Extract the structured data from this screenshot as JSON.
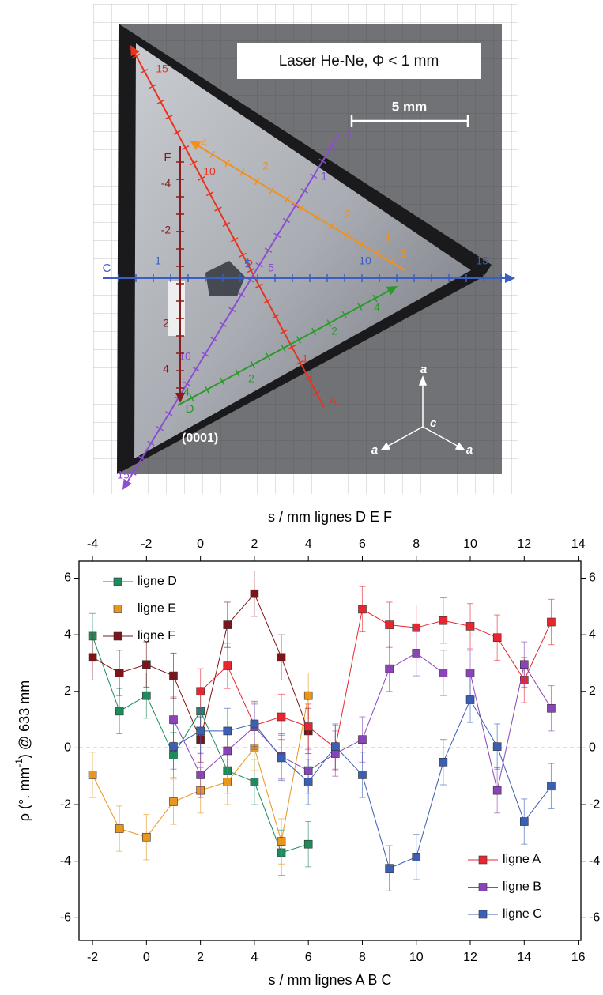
{
  "photo": {
    "caption": "Laser He-Ne, Φ < 1 mm",
    "scale_bar": "5 mm",
    "face": "(0001)",
    "axes": [
      "a",
      "c",
      "a",
      "a"
    ],
    "lines": [
      {
        "name": "A",
        "labels": [
          "15",
          "10",
          "5",
          "1"
        ]
      },
      {
        "name": "B",
        "labels": [
          "1",
          "5",
          "10",
          "15"
        ]
      },
      {
        "name": "C",
        "labels": [
          "1",
          "5",
          "10",
          "15"
        ]
      },
      {
        "name": "D",
        "labels": [
          "4",
          "2",
          "2",
          "4"
        ]
      },
      {
        "labels": [
          "4",
          "2",
          "2",
          "4",
          "6"
        ]
      },
      {
        "name": "F",
        "labels": [
          "-4",
          "-2",
          "2",
          "4"
        ]
      }
    ]
  },
  "chart_data": {
    "type": "line",
    "xlabel": "s / mm lignes A B C",
    "x2label": "s / mm lignes D E F",
    "ylabel": {
      "main": "ρ (°. mm",
      "sup": "-1",
      "rest": ") @ 633 mm"
    },
    "xlim": [
      -2.5,
      16.1
    ],
    "xticks": [
      -2,
      0,
      2,
      4,
      6,
      8,
      10,
      12,
      14,
      16
    ],
    "x2lim": [
      -4.5,
      14.1
    ],
    "x2ticks": [
      -4,
      -2,
      0,
      2,
      4,
      6,
      8,
      10,
      12,
      14
    ],
    "ylim": [
      -6.8,
      6.6
    ],
    "yticks": [
      -6,
      -4,
      -2,
      0,
      2,
      4,
      6
    ],
    "zero_line": true,
    "series": [
      {
        "name": "ligne D",
        "color": "#1f8a5c",
        "axis": "x2",
        "legend": "upper left",
        "error": 0.8,
        "x": [
          -4,
          -3,
          -2,
          -1,
          0,
          1,
          2,
          3,
          4
        ],
        "values": [
          3.95,
          1.3,
          1.85,
          -0.25,
          1.3,
          -0.8,
          -1.2,
          -3.7,
          -3.4
        ]
      },
      {
        "name": "ligne E",
        "color": "#e8961e",
        "axis": "x2",
        "legend": "upper left",
        "error": 0.8,
        "x": [
          -4,
          -3,
          -2,
          -1,
          0,
          1,
          2,
          3,
          4
        ],
        "values": [
          -0.95,
          -2.85,
          -3.15,
          -1.9,
          -1.5,
          -1.2,
          0.0,
          -3.3,
          1.85
        ]
      },
      {
        "name": "ligne F",
        "color": "#7d1419",
        "axis": "x2",
        "legend": "upper left",
        "error": 0.8,
        "x": [
          -4,
          -3,
          -2,
          -1,
          0,
          1,
          2,
          3,
          4
        ],
        "values": [
          3.2,
          2.65,
          2.95,
          2.55,
          0.3,
          4.35,
          5.45,
          3.2,
          0.6
        ]
      },
      {
        "name": "ligne A",
        "color": "#e8262f",
        "legend": "lower right",
        "error": 0.8,
        "x": [
          2,
          3,
          4,
          5,
          6,
          7,
          8,
          9,
          10,
          11,
          12,
          13,
          14,
          15
        ],
        "values": [
          2.0,
          2.9,
          0.8,
          1.1,
          0.75,
          0.0,
          4.9,
          4.35,
          4.25,
          4.5,
          4.3,
          3.9,
          2.4,
          4.45
        ]
      },
      {
        "name": "ligne B",
        "color": "#8a44b8",
        "legend": "lower right",
        "error": 0.8,
        "x": [
          1,
          2,
          3,
          4,
          5,
          6,
          7,
          8,
          9,
          10,
          11,
          12,
          13,
          14,
          15
        ],
        "values": [
          1.0,
          -0.95,
          -0.1,
          0.75,
          -0.3,
          -0.8,
          -0.2,
          0.3,
          2.8,
          3.35,
          2.65,
          2.65,
          -1.5,
          2.95,
          1.4
        ]
      },
      {
        "name": "ligne C",
        "color": "#3a5fb4",
        "legend": "lower right",
        "error": 0.8,
        "x": [
          1,
          2,
          3,
          4,
          5,
          6,
          7,
          8,
          9,
          10,
          11,
          12,
          13,
          14,
          15
        ],
        "values": [
          0.05,
          0.6,
          0.6,
          0.85,
          -0.35,
          -1.2,
          0.05,
          -0.95,
          -4.25,
          -3.85,
          -0.5,
          1.7,
          0.05,
          -2.6,
          -1.35
        ]
      }
    ]
  }
}
